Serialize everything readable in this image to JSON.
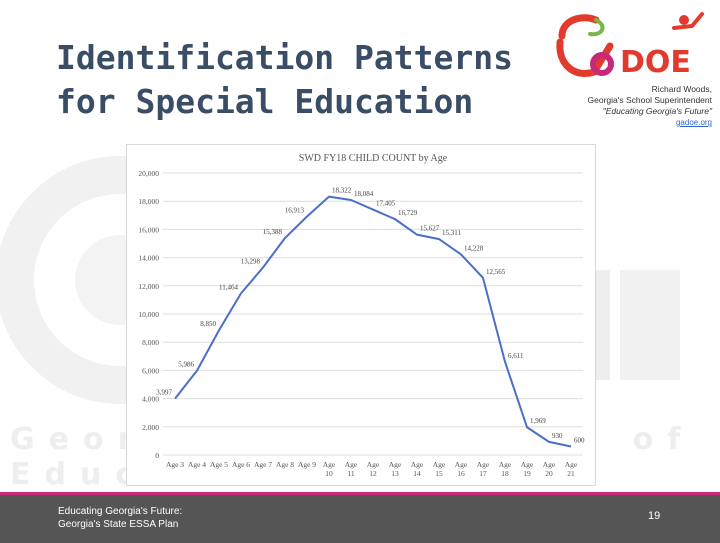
{
  "slide": {
    "title_line1": "Identification Patterns",
    "title_line2": "for Special Education",
    "superintendent_name": "Richard Woods,",
    "superintendent_role": "Georgia's School Superintendent",
    "motto": "\"Educating Georgia's Future\"",
    "website": "gadoe.org",
    "logo_text": "GaDOE",
    "watermark_text": "Georgia Department of Education",
    "footer_line1": "Educating Georgia's Future:",
    "footer_line2": "Georgia's State ESSA Plan",
    "page_number": "19"
  },
  "colors": {
    "title": "#3a4d66",
    "series": "#4a6fc8",
    "logo_red": "#e23b2e",
    "logo_pink": "#c8287a",
    "logo_green": "#7ab648",
    "footer_bg": "#555555",
    "footer_accent": "#c8287a"
  },
  "chart_data": {
    "type": "line",
    "title": "SWD FY18 CHILD COUNT by Age",
    "categories": [
      "Age 3",
      "Age 4",
      "Age 5",
      "Age 6",
      "Age 7",
      "Age 8",
      "Age 9",
      "Age 10",
      "Age 11",
      "Age 12",
      "Age 13",
      "Age 14",
      "Age 15",
      "Age 16",
      "Age 17",
      "Age 18",
      "Age 19",
      "Age 20",
      "Age 21"
    ],
    "values": [
      3997,
      5986,
      8850,
      11464,
      13298,
      15388,
      16913,
      18322,
      18084,
      17405,
      16729,
      15627,
      15311,
      14228,
      12565,
      6611,
      1969,
      930,
      600
    ],
    "data_labels": [
      "3,997",
      "5,986",
      "8,850",
      "11,464",
      "13,298",
      "15,388",
      "16,913",
      "18,322",
      "18,084",
      "17,405",
      "16,729",
      "15,627",
      "15,311",
      "14,228",
      "12,565",
      "6,611",
      "1,969",
      "930",
      "600"
    ],
    "y_ticks": [
      "0",
      "2,000",
      "4,000",
      "6,000",
      "8,000",
      "10,000",
      "12,000",
      "14,000",
      "16,000",
      "18,000",
      "20,000"
    ],
    "ylim": [
      0,
      20000
    ],
    "grid": true
  }
}
